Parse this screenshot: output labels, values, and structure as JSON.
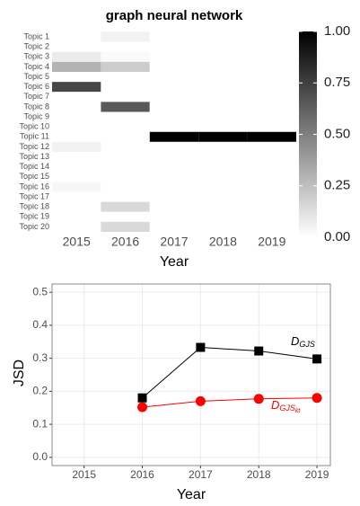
{
  "chart_data": [
    {
      "type": "heatmap",
      "title": "graph neural network",
      "xlabel": "Year",
      "categories": [
        "2015",
        "2016",
        "2017",
        "2018",
        "2019"
      ],
      "rows": [
        "Topic 1",
        "Topic 2",
        "Topic 3",
        "Topic 4",
        "Topic 5",
        "Topic 6",
        "Topic 7",
        "Topic 8",
        "Topic 9",
        "Topic 10",
        "Topic 11",
        "Topic 12",
        "Topic 13",
        "Topic 14",
        "Topic 15",
        "Topic 16",
        "Topic 17",
        "Topic 18",
        "Topic 19",
        "Topic 20"
      ],
      "values": [
        [
          0,
          0.05,
          0,
          0,
          0
        ],
        [
          0,
          0,
          0,
          0,
          0
        ],
        [
          0.08,
          0.02,
          0,
          0,
          0
        ],
        [
          0.3,
          0.2,
          0,
          0,
          0
        ],
        [
          0,
          0,
          0,
          0,
          0
        ],
        [
          0.72,
          0,
          0,
          0,
          0
        ],
        [
          0,
          0,
          0,
          0,
          0
        ],
        [
          0,
          0.65,
          0,
          0,
          0
        ],
        [
          0,
          0,
          0,
          0,
          0
        ],
        [
          0,
          0,
          0,
          0,
          0
        ],
        [
          0,
          0,
          1,
          1,
          1
        ],
        [
          0.05,
          0,
          0,
          0,
          0
        ],
        [
          0,
          0,
          0,
          0,
          0
        ],
        [
          0,
          0,
          0,
          0,
          0
        ],
        [
          0,
          0,
          0,
          0,
          0
        ],
        [
          0.03,
          0,
          0,
          0,
          0
        ],
        [
          0,
          0,
          0,
          0,
          0
        ],
        [
          0,
          0.15,
          0,
          0,
          0
        ],
        [
          0,
          0,
          0,
          0,
          0
        ],
        [
          0,
          0.15,
          0,
          0,
          0
        ]
      ],
      "color_low": "#ffffff",
      "color_high": "#000000",
      "clim": [
        0,
        1
      ],
      "cticks": [
        {
          "value": 0,
          "label": "0.00"
        },
        {
          "value": 0.25,
          "label": "0.25"
        },
        {
          "value": 0.5,
          "label": "0.50"
        },
        {
          "value": 0.75,
          "label": "0.75"
        },
        {
          "value": 1,
          "label": "1.00"
        }
      ]
    },
    {
      "type": "line",
      "xlabel": "Year",
      "ylabel": "JSD",
      "xlim": [
        2014.45,
        2019.23
      ],
      "xticks": [
        2015,
        2016,
        2017,
        2018,
        2019
      ],
      "ylim": [
        -0.025,
        0.525
      ],
      "yticks": [
        {
          "value": 0,
          "label": "0.0"
        },
        {
          "value": 0.1,
          "label": "0.1"
        },
        {
          "value": 0.2,
          "label": "0.2"
        },
        {
          "value": 0.3,
          "label": "0.3"
        },
        {
          "value": 0.4,
          "label": "0.4"
        },
        {
          "value": 0.5,
          "label": "0.5"
        }
      ],
      "grid": true,
      "series": [
        {
          "name": "D",
          "name_sub": "GJS",
          "color": "#000000",
          "marker": "square",
          "x": [
            2016,
            2017,
            2018,
            2019
          ],
          "values": [
            0.18,
            0.333,
            0.322,
            0.298
          ]
        },
        {
          "name": "D",
          "name_sub": "GJS",
          "name_subsub": "kt",
          "color": "#ff0000",
          "marker": "circle",
          "x": [
            2016,
            2017,
            2018,
            2019
          ],
          "values": [
            0.152,
            0.17,
            0.177,
            0.18
          ]
        }
      ]
    }
  ]
}
